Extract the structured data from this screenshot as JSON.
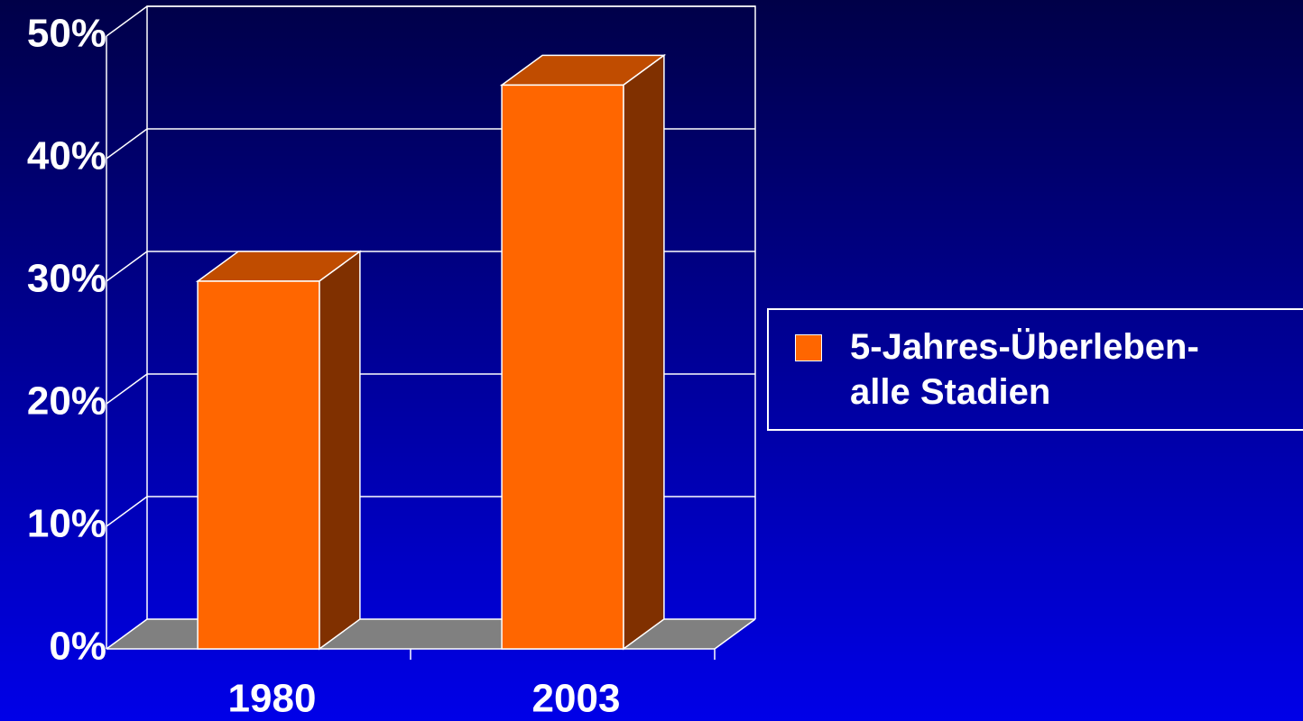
{
  "chart_data": {
    "type": "bar3d",
    "categories": [
      "1980",
      "2003"
    ],
    "series": [
      {
        "name": "5-Jahres-Überleben-\nalle Stadien",
        "color": "#ff6600",
        "values": [
          30,
          46
        ]
      }
    ],
    "ylim": [
      0,
      50
    ],
    "yticks": [
      {
        "value": 0,
        "label": "0%"
      },
      {
        "value": 10,
        "label": "10%"
      },
      {
        "value": 20,
        "label": "20%"
      },
      {
        "value": 30,
        "label": "30%"
      },
      {
        "value": 40,
        "label": "40%"
      },
      {
        "value": 50,
        "label": "50%"
      }
    ],
    "grid": true,
    "legend": "right"
  }
}
